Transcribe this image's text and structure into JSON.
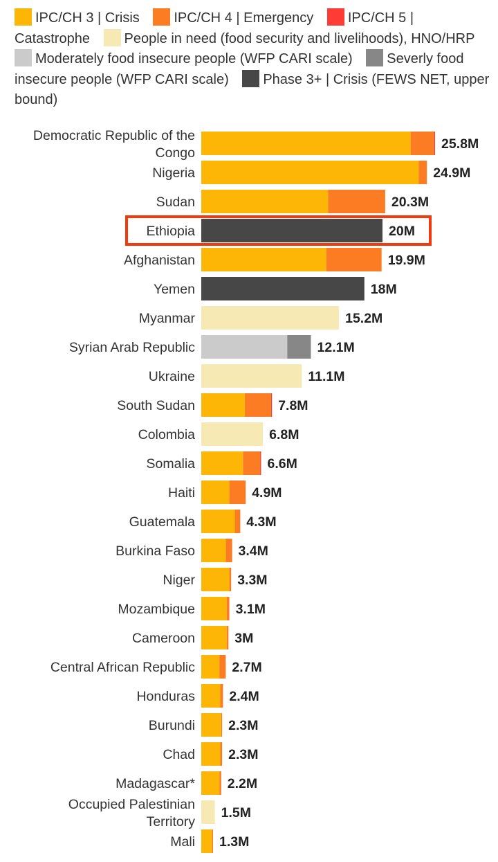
{
  "legend": [
    {
      "label": "IPC/CH 3 | Crisis",
      "color": "#FDB606",
      "icon": "square-swatch"
    },
    {
      "label": "IPC/CH 4 | Emergency",
      "color": "#FB7C23",
      "icon": "square-swatch"
    },
    {
      "label": "IPC/CH 5 | Catastrophe",
      "color": "#FE3B34",
      "icon": "square-swatch"
    },
    {
      "label": "People in need (food security and livelihoods), HNO/HRP",
      "color": "#F6E9B4",
      "icon": "square-swatch"
    },
    {
      "label": "Moderately  food insecure people (WFP CARI scale)",
      "color": "#CBCBCB",
      "icon": "square-swatch"
    },
    {
      "label": "Severly  food insecure people (WFP CARI scale)",
      "color": "#878787",
      "icon": "square-swatch"
    },
    {
      "label": "Phase 3+ | Crisis (FEWS NET, upper bound)",
      "color": "#474747",
      "icon": "square-swatch"
    }
  ],
  "highlight": {
    "category": "Ethiopia",
    "color": "#F23A0E"
  },
  "chart_data": {
    "type": "bar",
    "orientation": "horizontal",
    "stacked": true,
    "xlim": [
      0,
      27
    ],
    "unit": "M",
    "grid": false,
    "legend_position": "top",
    "series": [
      {
        "name": "IPC/CH 3 | Crisis",
        "color": "#FDB606"
      },
      {
        "name": "IPC/CH 4 | Emergency",
        "color": "#FB7C23"
      },
      {
        "name": "IPC/CH 5 | Catastrophe",
        "color": "#FE3B34"
      },
      {
        "name": "People in need (food security and livelihoods), HNO/HRP",
        "color": "#F6E9B4"
      },
      {
        "name": "Moderately  food insecure people (WFP CARI scale)",
        "color": "#CBCBCB"
      },
      {
        "name": "Severly  food insecure people (WFP CARI scale)",
        "color": "#878787"
      },
      {
        "name": "Phase 3+ | Crisis (FEWS NET, upper bound)",
        "color": "#474747"
      }
    ],
    "rows": [
      {
        "category": [
          "Democratic Republic of the",
          "Congo"
        ],
        "total_label": "25.8M",
        "segments": [
          {
            "series": 0,
            "value": 23.1
          },
          {
            "series": 1,
            "value": 2.6
          },
          {
            "series": 2,
            "value": 0.1
          }
        ]
      },
      {
        "category": [
          "Nigeria"
        ],
        "total_label": "24.9M",
        "segments": [
          {
            "series": 0,
            "value": 24.0
          },
          {
            "series": 1,
            "value": 0.9
          }
        ]
      },
      {
        "category": [
          "Sudan"
        ],
        "total_label": "20.3M",
        "segments": [
          {
            "series": 0,
            "value": 14.0
          },
          {
            "series": 1,
            "value": 6.3
          }
        ]
      },
      {
        "category": [
          "Ethiopia"
        ],
        "total_label": "20M",
        "segments": [
          {
            "series": 6,
            "value": 20.0
          }
        ]
      },
      {
        "category": [
          "Afghanistan"
        ],
        "total_label": "19.9M",
        "segments": [
          {
            "series": 0,
            "value": 13.8
          },
          {
            "series": 1,
            "value": 6.1
          }
        ]
      },
      {
        "category": [
          "Yemen"
        ],
        "total_label": "18M",
        "segments": [
          {
            "series": 6,
            "value": 18.0
          }
        ]
      },
      {
        "category": [
          "Myanmar"
        ],
        "total_label": "15.2M",
        "segments": [
          {
            "series": 3,
            "value": 15.2
          }
        ]
      },
      {
        "category": [
          "Syrian Arab Republic"
        ],
        "total_label": "12.1M",
        "segments": [
          {
            "series": 4,
            "value": 9.5
          },
          {
            "series": 5,
            "value": 2.6
          }
        ]
      },
      {
        "category": [
          "Ukraine"
        ],
        "total_label": "11.1M",
        "segments": [
          {
            "series": 3,
            "value": 11.1
          }
        ]
      },
      {
        "category": [
          "South Sudan"
        ],
        "total_label": "7.8M",
        "segments": [
          {
            "series": 0,
            "value": 4.8
          },
          {
            "series": 1,
            "value": 2.9
          },
          {
            "series": 2,
            "value": 0.1
          }
        ]
      },
      {
        "category": [
          "Colombia"
        ],
        "total_label": "6.8M",
        "segments": [
          {
            "series": 3,
            "value": 6.8
          }
        ]
      },
      {
        "category": [
          "Somalia"
        ],
        "total_label": "6.6M",
        "segments": [
          {
            "series": 0,
            "value": 4.6
          },
          {
            "series": 1,
            "value": 1.9
          },
          {
            "series": 2,
            "value": 0.1
          }
        ]
      },
      {
        "category": [
          "Haiti"
        ],
        "total_label": "4.9M",
        "segments": [
          {
            "series": 0,
            "value": 3.1
          },
          {
            "series": 1,
            "value": 1.8
          }
        ]
      },
      {
        "category": [
          "Guatemala"
        ],
        "total_label": "4.3M",
        "segments": [
          {
            "series": 0,
            "value": 3.7
          },
          {
            "series": 1,
            "value": 0.6
          }
        ]
      },
      {
        "category": [
          "Burkina Faso"
        ],
        "total_label": "3.4M",
        "segments": [
          {
            "series": 0,
            "value": 2.7
          },
          {
            "series": 1,
            "value": 0.7
          }
        ]
      },
      {
        "category": [
          "Niger"
        ],
        "total_label": "3.3M",
        "segments": [
          {
            "series": 0,
            "value": 3.1
          },
          {
            "series": 1,
            "value": 0.2
          }
        ]
      },
      {
        "category": [
          "Mozambique"
        ],
        "total_label": "3.1M",
        "segments": [
          {
            "series": 0,
            "value": 2.8
          },
          {
            "series": 1,
            "value": 0.3
          }
        ]
      },
      {
        "category": [
          "Cameroon"
        ],
        "total_label": "3M",
        "segments": [
          {
            "series": 0,
            "value": 2.8
          },
          {
            "series": 1,
            "value": 0.2
          }
        ]
      },
      {
        "category": [
          "Central African Republic"
        ],
        "total_label": "2.7M",
        "segments": [
          {
            "series": 0,
            "value": 2.0
          },
          {
            "series": 1,
            "value": 0.7
          }
        ]
      },
      {
        "category": [
          "Honduras"
        ],
        "total_label": "2.4M",
        "segments": [
          {
            "series": 0,
            "value": 2.1
          },
          {
            "series": 1,
            "value": 0.3
          }
        ]
      },
      {
        "category": [
          "Burundi"
        ],
        "total_label": "2.3M",
        "segments": [
          {
            "series": 0,
            "value": 2.2
          },
          {
            "series": 1,
            "value": 0.1
          }
        ]
      },
      {
        "category": [
          "Chad"
        ],
        "total_label": "2.3M",
        "segments": [
          {
            "series": 0,
            "value": 2.1
          },
          {
            "series": 1,
            "value": 0.2
          }
        ]
      },
      {
        "category": [
          "Madagascar*"
        ],
        "total_label": "2.2M",
        "segments": [
          {
            "series": 0,
            "value": 2.0
          },
          {
            "series": 1,
            "value": 0.2
          }
        ]
      },
      {
        "category": [
          "Occupied Palestinian",
          "Territory"
        ],
        "total_label": "1.5M",
        "segments": [
          {
            "series": 3,
            "value": 1.5
          }
        ]
      },
      {
        "category": [
          "Mali"
        ],
        "total_label": "1.3M",
        "segments": [
          {
            "series": 0,
            "value": 1.2
          },
          {
            "series": 1,
            "value": 0.1
          }
        ]
      }
    ]
  }
}
